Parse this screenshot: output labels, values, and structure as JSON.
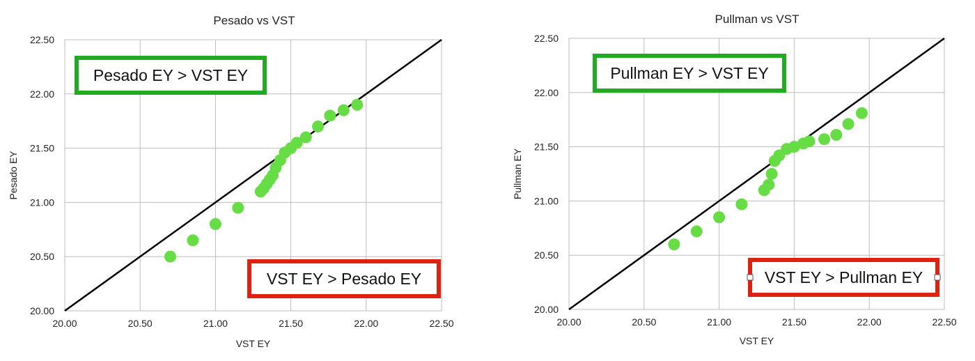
{
  "chart_data": [
    {
      "type": "scatter",
      "title": "Pesado vs VST",
      "xlabel": "VST EY",
      "ylabel": "Pesado EY",
      "xlim": [
        20.0,
        22.5
      ],
      "ylim": [
        20.0,
        22.5
      ],
      "xticks": [
        "20.00",
        "20.50",
        "21.00",
        "21.50",
        "22.00",
        "22.50"
      ],
      "yticks": [
        "20.00",
        "20.50",
        "21.00",
        "21.50",
        "22.00",
        "22.50"
      ],
      "grid": true,
      "reference_line": {
        "from": [
          20.0,
          20.0
        ],
        "to": [
          22.5,
          22.5
        ],
        "color": "#000000"
      },
      "point_color": "#66dd44",
      "annotations": [
        {
          "text": "Pesado EY > VST EY",
          "border_color": "#22aa22",
          "position": "upper-left"
        },
        {
          "text": "VST EY > Pesado EY",
          "border_color": "#dd2211",
          "position": "lower-right"
        }
      ],
      "series": [
        {
          "x": [
            20.7,
            20.85,
            21.0,
            21.15,
            21.3,
            21.32,
            21.34,
            21.36,
            21.38,
            21.4,
            21.43,
            21.46,
            21.5,
            21.54,
            21.6,
            21.68,
            21.76,
            21.85,
            21.94
          ],
          "y": [
            20.5,
            20.65,
            20.8,
            20.95,
            21.1,
            21.13,
            21.17,
            21.21,
            21.25,
            21.32,
            21.39,
            21.46,
            21.5,
            21.55,
            21.6,
            21.7,
            21.8,
            21.85,
            21.9
          ]
        }
      ]
    },
    {
      "type": "scatter",
      "title": "Pullman vs VST",
      "xlabel": "VST EY",
      "ylabel": "Pullman EY",
      "xlim": [
        20.0,
        22.5
      ],
      "ylim": [
        20.0,
        22.5
      ],
      "xticks": [
        "20.00",
        "20.50",
        "21.00",
        "21.50",
        "22.00",
        "22.50"
      ],
      "yticks": [
        "20.00",
        "20.50",
        "21.00",
        "21.50",
        "22.00",
        "22.50"
      ],
      "grid": true,
      "reference_line": {
        "from": [
          20.0,
          20.0
        ],
        "to": [
          22.5,
          22.5
        ],
        "color": "#000000"
      },
      "point_color": "#66dd44",
      "annotations": [
        {
          "text": "Pullman EY > VST EY",
          "border_color": "#22aa22",
          "position": "upper-left"
        },
        {
          "text": "VST EY > Pullman EY",
          "border_color": "#dd2211",
          "position": "lower-right"
        }
      ],
      "series": [
        {
          "x": [
            20.7,
            20.85,
            21.0,
            21.15,
            21.3,
            21.33,
            21.35,
            21.37,
            21.4,
            21.45,
            21.5,
            21.56,
            21.6,
            21.7,
            21.78,
            21.86,
            21.95
          ],
          "y": [
            20.6,
            20.72,
            20.85,
            20.97,
            21.1,
            21.15,
            21.25,
            21.37,
            21.42,
            21.48,
            21.5,
            21.53,
            21.55,
            21.57,
            21.61,
            21.71,
            21.81
          ]
        }
      ]
    }
  ]
}
